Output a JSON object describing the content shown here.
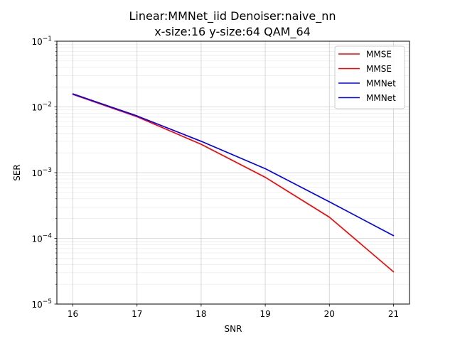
{
  "chart_data": {
    "type": "line",
    "title_lines": [
      "Linear:MMNet_iid Denoiser:naive_nn",
      "x-size:16 y-size:64 QAM_64"
    ],
    "xlabel": "SNR",
    "ylabel": "SER",
    "yscale": "log",
    "x": [
      16,
      17,
      18,
      19,
      20,
      21
    ],
    "xticks": [
      16,
      17,
      18,
      19,
      20,
      21
    ],
    "xlim": [
      15.75,
      21.25
    ],
    "ylim": [
      1e-05,
      0.1
    ],
    "yticks": [
      {
        "value": 0.1,
        "mantissa": "10",
        "exp": "−1"
      },
      {
        "value": 0.01,
        "mantissa": "10",
        "exp": "−2"
      },
      {
        "value": 0.001,
        "mantissa": "10",
        "exp": "−3"
      },
      {
        "value": 0.0001,
        "mantissa": "10",
        "exp": "−4"
      },
      {
        "value": 1e-05,
        "mantissa": "10",
        "exp": "−5"
      }
    ],
    "grid": true,
    "legend_position": "top-right",
    "series": [
      {
        "name": "MMSE",
        "color": "#ff0000",
        "values": [
          0.0155,
          0.0071,
          0.0027,
          0.00085,
          0.00021,
          3.1e-05
        ]
      },
      {
        "name": "MMSE",
        "color": "#ff0000",
        "values": [
          0.0155,
          0.0071,
          0.0027,
          0.00085,
          0.00021,
          3.1e-05
        ]
      },
      {
        "name": "MMNet",
        "color": "#0000ff",
        "values": [
          0.0158,
          0.0073,
          0.003,
          0.00115,
          0.00036,
          0.00011
        ]
      },
      {
        "name": "MMNet",
        "color": "#0000ff",
        "values": [
          0.0158,
          0.0073,
          0.003,
          0.00115,
          0.00036,
          0.00011
        ]
      }
    ]
  }
}
